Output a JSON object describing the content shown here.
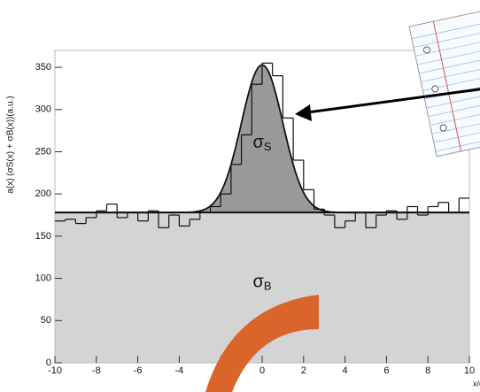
{
  "chart_data": {
    "type": "histogram",
    "y_label": "a(x) (σS(x) + σB(x))(a.u.)",
    "x_label": "x/σ",
    "bins": [
      -10,
      -9.5,
      -9,
      -8.5,
      -8,
      -7.5,
      -7,
      -6.5,
      -6,
      -5.5,
      -5,
      -4.5,
      -4,
      -3.5,
      -3,
      -2.5,
      -2,
      -1.5,
      -1,
      -0.5,
      0,
      0.5,
      1,
      1.5,
      2,
      2.5,
      3,
      3.5,
      4,
      4.5,
      5,
      5.5,
      6,
      6.5,
      7,
      7.5,
      8,
      8.5,
      9,
      9.5,
      10
    ],
    "values": [
      168,
      170,
      165,
      172,
      180,
      188,
      172,
      178,
      168,
      180,
      160,
      175,
      162,
      170,
      178,
      185,
      200,
      235,
      270,
      330,
      355,
      340,
      290,
      240,
      205,
      182,
      175,
      160,
      168,
      178,
      160,
      175,
      180,
      170,
      185,
      175,
      185,
      190,
      178,
      195
    ],
    "fit": {
      "background": 178,
      "amplitude": 175,
      "mean": 0,
      "sigma": 1
    },
    "annotations": [
      {
        "symbol": "σ",
        "sub": "S",
        "x": 0,
        "y": 260
      },
      {
        "symbol": "σ",
        "sub": "B",
        "x": 0,
        "y": 95
      }
    ],
    "xlim": [
      -10,
      10
    ],
    "ylim": [
      0,
      370
    ],
    "xticks": [
      -10,
      -8,
      -6,
      -4,
      -2,
      0,
      2,
      4,
      6,
      8,
      10
    ],
    "yticks": [
      0,
      50,
      100,
      150,
      200,
      250,
      300,
      350
    ],
    "colors": {
      "background_fill": "#d4d4d4",
      "signal_fill": "#999999",
      "line": "#111111"
    }
  }
}
